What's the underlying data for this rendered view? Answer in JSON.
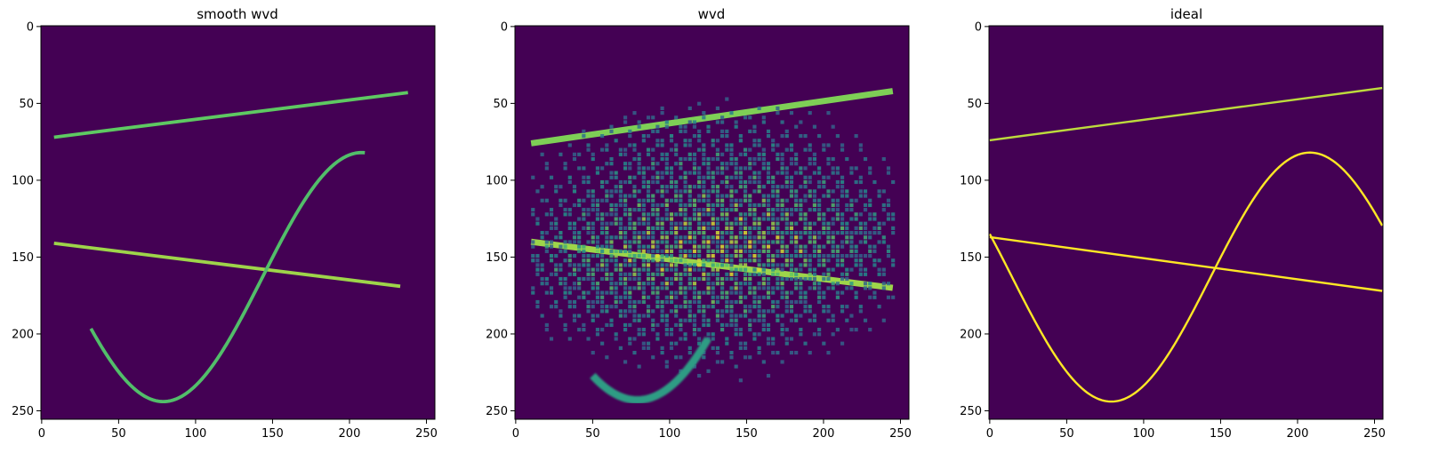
{
  "chart_data": [
    {
      "type": "heatmap",
      "title": "smooth wvd",
      "colormap": "viridis",
      "xlim": [
        0,
        255
      ],
      "ylim": [
        255,
        0
      ],
      "x_ticks": [
        0,
        50,
        100,
        150,
        200,
        250
      ],
      "y_ticks": [
        0,
        50,
        100,
        150,
        200,
        250
      ],
      "features": [
        {
          "kind": "line",
          "x": [
            8,
            238
          ],
          "y": [
            72,
            43
          ],
          "intensity": 0.75,
          "width": 2.2
        },
        {
          "kind": "line",
          "x": [
            8,
            233
          ],
          "y": [
            141,
            169
          ],
          "intensity": 0.85,
          "width": 2.2
        },
        {
          "kind": "sine_arc",
          "x_range": [
            32,
            210
          ],
          "center_x": 79,
          "min_y": 244,
          "amplitude": 81,
          "period": 258,
          "offset_y": 163,
          "intensity": 0.7,
          "width": 2.2
        }
      ]
    },
    {
      "type": "heatmap",
      "title": "wvd",
      "colormap": "viridis",
      "xlim": [
        0,
        255
      ],
      "ylim": [
        255,
        0
      ],
      "x_ticks": [
        0,
        50,
        100,
        150,
        200,
        250
      ],
      "y_ticks": [
        0,
        50,
        100,
        150,
        200,
        250
      ],
      "features": [
        {
          "kind": "line",
          "x": [
            10,
            245
          ],
          "y": [
            76,
            42
          ],
          "intensity": 0.8,
          "width": 4
        },
        {
          "kind": "line",
          "x": [
            10,
            245
          ],
          "y": [
            140,
            170
          ],
          "intensity": 0.85,
          "width": 4
        },
        {
          "kind": "interference",
          "x_range": [
            10,
            245
          ],
          "y_range": [
            25,
            250
          ],
          "intensity": 0.45
        },
        {
          "kind": "bowl",
          "x_range": [
            50,
            125
          ],
          "center_x": 79,
          "min_y": 243,
          "intensity": 0.55
        }
      ]
    },
    {
      "type": "heatmap",
      "title": "ideal",
      "colormap": "viridis",
      "xlim": [
        0,
        255
      ],
      "ylim": [
        255,
        0
      ],
      "x_ticks": [
        0,
        50,
        100,
        150,
        200,
        250
      ],
      "y_ticks": [
        0,
        50,
        100,
        150,
        200,
        250
      ],
      "features": [
        {
          "kind": "line",
          "x": [
            0,
            255
          ],
          "y": [
            74,
            40
          ],
          "intensity": 0.9,
          "width": 1.4
        },
        {
          "kind": "line",
          "x": [
            0,
            255
          ],
          "y": [
            137,
            172
          ],
          "intensity": 1.0,
          "width": 1.4
        },
        {
          "kind": "sine_arc",
          "x_range": [
            0,
            255
          ],
          "center_x": 79,
          "min_y": 244,
          "amplitude": 81,
          "period": 258,
          "offset_y": 163,
          "intensity": 1.0,
          "width": 1.4
        }
      ]
    }
  ],
  "colors": {
    "background": "#440154",
    "low": "#31688e",
    "mid": "#21918c",
    "high": "#b5de2b",
    "peak": "#fde725"
  }
}
